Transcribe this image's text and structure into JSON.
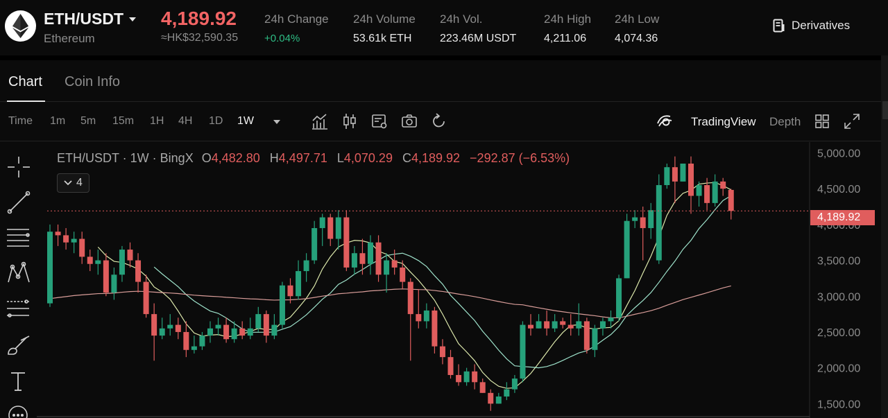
{
  "ticker": {
    "symbol": "ETH/USDT",
    "coin_name": "Ethereum",
    "last_price": "4,189.92",
    "fiat_price": "≈HK$32,590.35",
    "stats": [
      {
        "label": "24h Change",
        "value": "+0.04%"
      },
      {
        "label": "24h Volume",
        "value": "53.61k ETH"
      },
      {
        "label": "24h Vol.",
        "value": "223.46M USDT"
      },
      {
        "label": "24h High",
        "value": "4,211.06"
      },
      {
        "label": "24h Low",
        "value": "4,074.36"
      }
    ],
    "derivatives_label": "Derivatives"
  },
  "tabs": [
    "Chart",
    "Coin Info"
  ],
  "toolbar": {
    "time_label": "Time",
    "timeframes": [
      "1m",
      "5m",
      "15m",
      "1H",
      "4H",
      "1D",
      "1W"
    ],
    "active_timeframe": "1W",
    "tradingview_label": "TradingView",
    "depth_label": "Depth"
  },
  "legend": {
    "title": "ETH/USDT · 1W · BingX",
    "open_key": "O",
    "open": "4,482.80",
    "high_key": "H",
    "high": "4,497.71",
    "low_key": "L",
    "low": "4,070.29",
    "close_key": "C",
    "close": "4,189.92",
    "change": "−292.87 (−6.53%)",
    "indicator_count": "4"
  },
  "colors": {
    "up": "#26a17b",
    "down": "#e05d5d",
    "ma_fast": "#e9f5b5",
    "ma_mid": "#a6eed6",
    "ma_slow": "#e6a6a2",
    "background": "#0b0b0b"
  },
  "chart_data": {
    "type": "candlestick",
    "interval": "1W",
    "y_ticks": [
      "5,000.00",
      "4,500.00",
      "4,000.00",
      "3,500.00",
      "3,000.00",
      "2,500.00",
      "2,000.00",
      "1,500.00"
    ],
    "ylim": [
      1300,
      5150
    ],
    "last_price_label": "4,189.92",
    "candles": [
      [
        2900,
        3900,
        4000,
        2850
      ],
      [
        3900,
        3850,
        4000,
        3700
      ],
      [
        3850,
        3750,
        3950,
        3650
      ],
      [
        3750,
        3800,
        3900,
        3600
      ],
      [
        3800,
        3550,
        3900,
        3450
      ],
      [
        3550,
        3450,
        3650,
        3350
      ],
      [
        3450,
        3500,
        3650,
        3300
      ],
      [
        3500,
        3050,
        3600,
        3000
      ],
      [
        3050,
        3300,
        3400,
        2950
      ],
      [
        3300,
        3650,
        3700,
        3200
      ],
      [
        3650,
        3500,
        3750,
        3400
      ],
      [
        3500,
        3200,
        3600,
        3050
      ],
      [
        3200,
        2750,
        3300,
        2700
      ],
      [
        2750,
        2450,
        2900,
        2100
      ],
      [
        2450,
        2550,
        2700,
        2400
      ],
      [
        2550,
        2600,
        2750,
        2450
      ],
      [
        2600,
        2500,
        2700,
        2400
      ],
      [
        2500,
        2250,
        2650,
        2150
      ],
      [
        2250,
        2300,
        2450,
        2200
      ],
      [
        2300,
        2450,
        2500,
        2250
      ],
      [
        2450,
        2550,
        2650,
        2350
      ],
      [
        2550,
        2600,
        2700,
        2450
      ],
      [
        2600,
        2400,
        2700,
        2350
      ],
      [
        2400,
        2550,
        2650,
        2350
      ],
      [
        2550,
        2450,
        2650,
        2400
      ],
      [
        2450,
        2550,
        2700,
        2400
      ],
      [
        2550,
        2750,
        2850,
        2500
      ],
      [
        2750,
        2450,
        2800,
        2350
      ],
      [
        2450,
        2600,
        2750,
        2400
      ],
      [
        2600,
        3150,
        3200,
        2550
      ],
      [
        3150,
        3000,
        3250,
        2900
      ],
      [
        3000,
        3350,
        3500,
        2950
      ],
      [
        3350,
        3500,
        3600,
        3200
      ],
      [
        3500,
        3950,
        4050,
        3450
      ],
      [
        3950,
        4100,
        4150,
        3700
      ],
      [
        4100,
        3800,
        4150,
        3700
      ],
      [
        3800,
        4100,
        4200,
        3650
      ],
      [
        4100,
        3400,
        4200,
        3350
      ],
      [
        3400,
        3600,
        3700,
        3300
      ],
      [
        3600,
        3450,
        3800,
        3300
      ],
      [
        3450,
        3750,
        3850,
        3300
      ],
      [
        3750,
        3300,
        3850,
        3200
      ],
      [
        3300,
        3500,
        3600,
        3050
      ],
      [
        3500,
        3400,
        3650,
        3300
      ],
      [
        3400,
        3200,
        3500,
        3100
      ],
      [
        3200,
        2750,
        3250,
        2100
      ],
      [
        2750,
        2650,
        3100,
        2550
      ],
      [
        2650,
        2800,
        2900,
        2550
      ],
      [
        2800,
        2300,
        2850,
        2200
      ],
      [
        2300,
        2150,
        2400,
        2050
      ],
      [
        2150,
        1900,
        2250,
        1850
      ],
      [
        1900,
        1800,
        2050,
        1750
      ],
      [
        1800,
        1950,
        2000,
        1750
      ],
      [
        1950,
        1800,
        2050,
        1700
      ],
      [
        1800,
        1650,
        1850,
        1650
      ],
      [
        1650,
        1500,
        1700,
        1400
      ],
      [
        1500,
        1600,
        1650,
        1500
      ],
      [
        1600,
        1700,
        1800,
        1550
      ],
      [
        1700,
        1850,
        1900,
        1650
      ],
      [
        1850,
        2600,
        2650,
        1800
      ],
      [
        2600,
        2550,
        2750,
        2450
      ],
      [
        2550,
        2650,
        2750,
        2550
      ],
      [
        2650,
        2550,
        2800,
        2450
      ],
      [
        2550,
        2650,
        2750,
        2500
      ],
      [
        2650,
        2600,
        2700,
        2550
      ],
      [
        2600,
        2550,
        2750,
        2450
      ],
      [
        2550,
        2650,
        2900,
        2450
      ],
      [
        2650,
        2250,
        2700,
        2200
      ],
      [
        2250,
        2550,
        2600,
        2150
      ],
      [
        2550,
        2650,
        2700,
        2450
      ],
      [
        2650,
        2700,
        2800,
        2550
      ],
      [
        2700,
        3250,
        3300,
        2650
      ],
      [
        3250,
        4050,
        4150,
        3250
      ],
      [
        4050,
        4100,
        4200,
        3950
      ],
      [
        4100,
        3950,
        4250,
        3500
      ],
      [
        3950,
        4200,
        4300,
        3800
      ],
      [
        3500,
        4550,
        4700,
        3450
      ],
      [
        4550,
        4800,
        4850,
        4500
      ],
      [
        4800,
        4600,
        4950,
        4300
      ],
      [
        4600,
        4850,
        4850,
        4600
      ],
      [
        4850,
        4400,
        4950,
        4150
      ],
      [
        4400,
        4550,
        4600,
        4250
      ],
      [
        4550,
        4300,
        4650,
        4200
      ],
      [
        4300,
        4600,
        4700,
        4250
      ],
      [
        4600,
        4500,
        4650,
        4400
      ],
      [
        4482.8,
        4189.92,
        4497.71,
        4070.29
      ]
    ],
    "moving_averages": [
      {
        "period": 7,
        "color": "#e9f5b5"
      },
      {
        "period": 14,
        "color": "#a6eed6"
      },
      {
        "period": 60,
        "color": "#e6a6a2"
      }
    ]
  }
}
